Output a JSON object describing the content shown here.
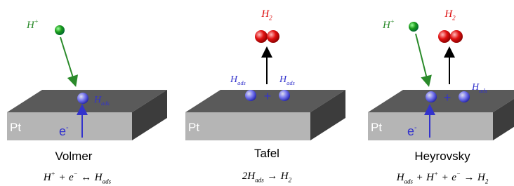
{
  "panels": [
    {
      "title": "Volmer",
      "labels": [
        {
          "base": "H",
          "sup": "+"
        },
        {
          "base": "H",
          "sub": "ads"
        },
        {
          "base": "Pt"
        },
        {
          "base": "e",
          "sup": "-"
        }
      ],
      "equation": [
        {
          "base": "H",
          "sup": "+"
        },
        {
          "base": "+"
        },
        {
          "base": "e",
          "sup": "−"
        },
        {
          "base": "↔"
        },
        {
          "base": "H",
          "sub": "ads"
        }
      ]
    },
    {
      "title": "Tafel",
      "labels": [
        {
          "base": "H",
          "sub": "2"
        },
        {
          "base": "H",
          "sub": "ads"
        },
        {
          "base": "H",
          "sub": "ads"
        },
        {
          "base": "+"
        },
        {
          "base": "Pt"
        }
      ],
      "equation": [
        {
          "base": "2H",
          "sub": "ads"
        },
        {
          "base": "→"
        },
        {
          "base": "H",
          "sub": "2"
        }
      ]
    },
    {
      "title": "Heyrovsky",
      "labels": [
        {
          "base": "H",
          "sup": "+"
        },
        {
          "base": "H",
          "sub": "2"
        },
        {
          "base": "+"
        },
        {
          "base": "H",
          "sub": "ads"
        },
        {
          "base": "Pt"
        },
        {
          "base": "e",
          "sup": "-"
        }
      ],
      "equation": [
        {
          "base": "H",
          "sub": "ads"
        },
        {
          "base": "+"
        },
        {
          "base": "H",
          "sup": "+"
        },
        {
          "base": "+"
        },
        {
          "base": "e",
          "sup": "−"
        },
        {
          "base": "→"
        },
        {
          "base": "H",
          "sub": "2"
        }
      ]
    }
  ]
}
